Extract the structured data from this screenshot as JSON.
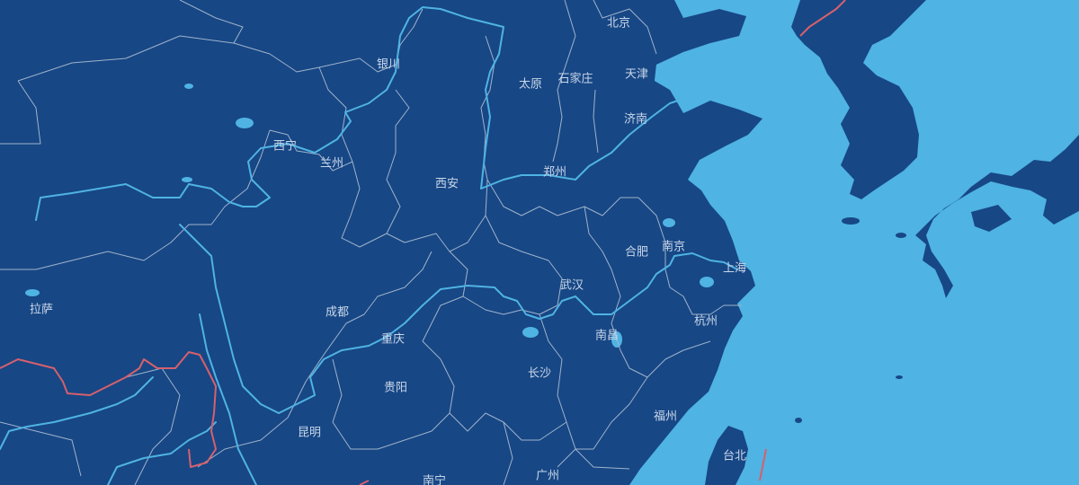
{
  "map": {
    "colors": {
      "sea": "#4fb3e3",
      "land": "#174785",
      "province_border": "#9fb3cc",
      "river": "#4fb3e3",
      "national_border": "#d6606d",
      "label": "#c9d7ea"
    },
    "cities": [
      {
        "id": "beijing",
        "name": "北京"
      },
      {
        "id": "tianjin",
        "name": "天津"
      },
      {
        "id": "yinchuan",
        "name": "银川"
      },
      {
        "id": "taiyuan",
        "name": "太原"
      },
      {
        "id": "shijiazhuang",
        "name": "石家庄"
      },
      {
        "id": "jinan",
        "name": "济南"
      },
      {
        "id": "xining",
        "name": "西宁"
      },
      {
        "id": "lanzhou",
        "name": "兰州"
      },
      {
        "id": "zhengzhou",
        "name": "郑州"
      },
      {
        "id": "xian",
        "name": "西安"
      },
      {
        "id": "hefei",
        "name": "合肥"
      },
      {
        "id": "nanjing",
        "name": "南京"
      },
      {
        "id": "shanghai",
        "name": "上海"
      },
      {
        "id": "lasa",
        "name": "拉萨"
      },
      {
        "id": "chengdu",
        "name": "成都"
      },
      {
        "id": "wuhan",
        "name": "武汉"
      },
      {
        "id": "hangzhou",
        "name": "杭州"
      },
      {
        "id": "chongqing",
        "name": "重庆"
      },
      {
        "id": "nanchang",
        "name": "南昌"
      },
      {
        "id": "changsha",
        "name": "长沙"
      },
      {
        "id": "guiyang",
        "name": "贵阳"
      },
      {
        "id": "fuzhou",
        "name": "福州"
      },
      {
        "id": "kunming",
        "name": "昆明"
      },
      {
        "id": "taibei",
        "name": "台北"
      },
      {
        "id": "guangzhou",
        "name": "广州"
      },
      {
        "id": "nanning",
        "name": "南宁"
      }
    ]
  }
}
